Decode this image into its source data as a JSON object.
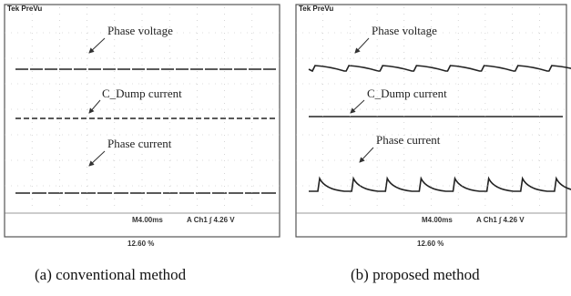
{
  "panels": [
    {
      "header": "Tek PreVu",
      "labels": [
        "Phase voltage",
        "C_Dump current",
        "Phase current"
      ],
      "timebase": "M4.00ms",
      "trigger": "A Ch1 ∫ 4.26 V",
      "position": "12.60 %",
      "caption": "(a) conventional method"
    },
    {
      "header": "Tek PreVu",
      "labels": [
        "Phase voltage",
        "C_Dump current",
        "Phase current"
      ],
      "timebase": "M4.00ms",
      "trigger": "A Ch1 ∫ 4.26 V",
      "position": "12.60 %",
      "caption": "(b) proposed method"
    }
  ]
}
